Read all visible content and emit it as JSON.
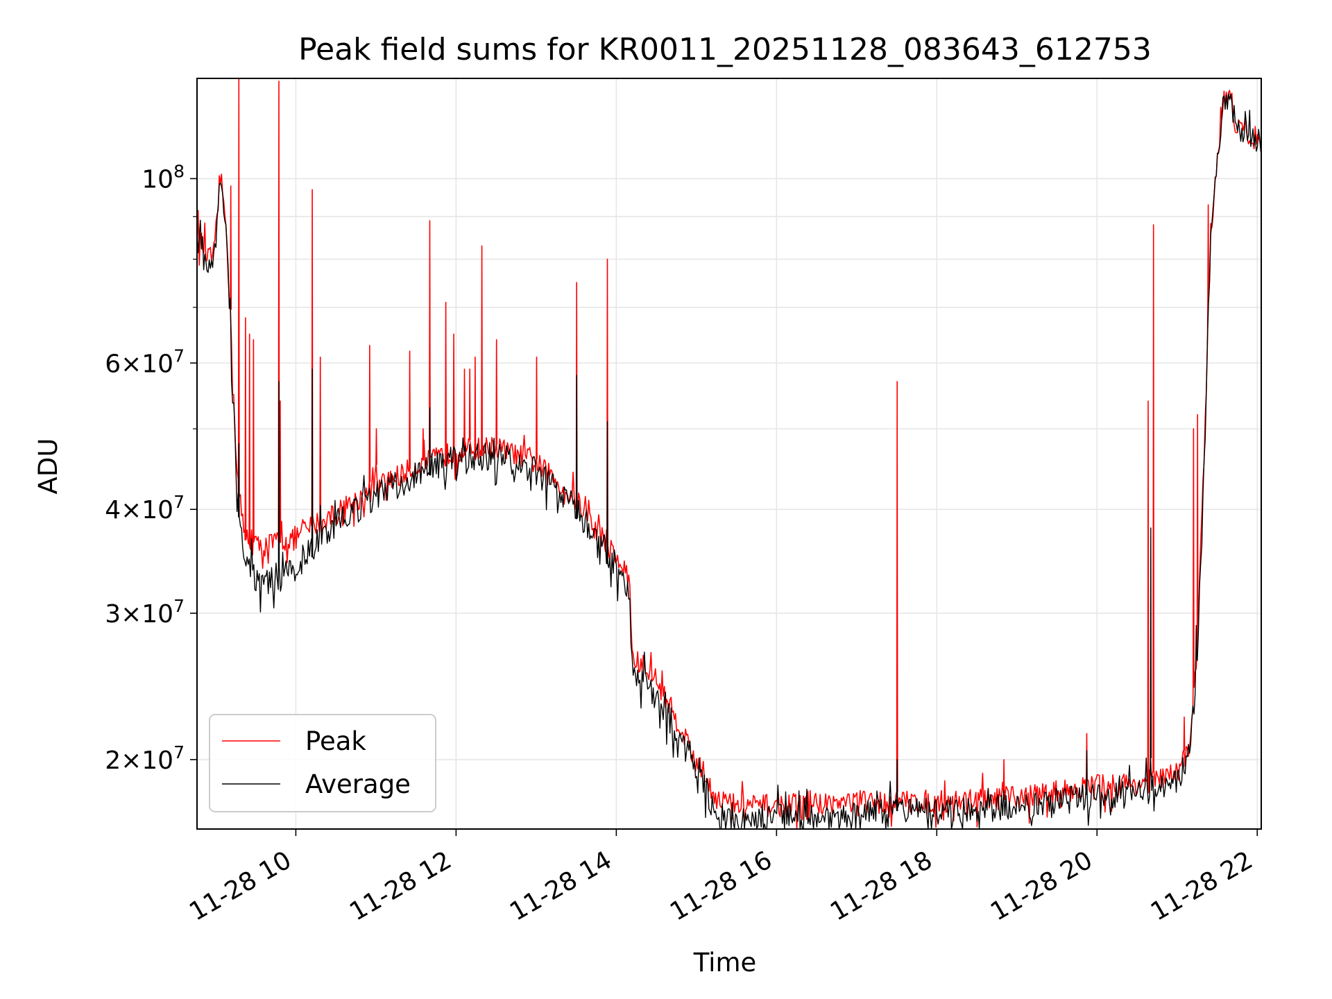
{
  "chart_data": {
    "type": "line",
    "title": "Peak field sums for KR0011_20251128_083643_612753",
    "xlabel": "Time",
    "ylabel": "ADU",
    "y_scale": "log",
    "grid": true,
    "legend_position": "lower-left",
    "xlim": [
      "2025-11-28 08:46",
      "2025-11-28 22:03"
    ],
    "ylim": [
      16500000,
      132000000
    ],
    "x_ticks": [
      {
        "value": "2025-11-28 10:00",
        "label": "11-28 10"
      },
      {
        "value": "2025-11-28 12:00",
        "label": "11-28 12"
      },
      {
        "value": "2025-11-28 14:00",
        "label": "11-28 14"
      },
      {
        "value": "2025-11-28 16:00",
        "label": "11-28 16"
      },
      {
        "value": "2025-11-28 18:00",
        "label": "11-28 18"
      },
      {
        "value": "2025-11-28 20:00",
        "label": "11-28 20"
      },
      {
        "value": "2025-11-28 22:00",
        "label": "11-28 22"
      }
    ],
    "y_ticks": [
      {
        "value": 20000000,
        "mant": "2",
        "exp": "7"
      },
      {
        "value": 30000000,
        "mant": "3",
        "exp": "7"
      },
      {
        "value": 40000000,
        "mant": "4",
        "exp": "7"
      },
      {
        "value": 60000000,
        "mant": "6",
        "exp": "7"
      },
      {
        "value": 100000000,
        "mant": "",
        "exp": "8"
      }
    ],
    "y_minor_ticks": [
      50000000,
      70000000,
      80000000,
      90000000
    ],
    "series": [
      {
        "name": "Peak",
        "color": "#ff0000",
        "points": [
          [
            "2025-11-28 08:46",
            86000000
          ],
          [
            "2025-11-28 08:55",
            80000000
          ],
          [
            "2025-11-28 09:00",
            82000000
          ],
          [
            "2025-11-28 09:03",
            102000000
          ],
          [
            "2025-11-28 09:08",
            88000000
          ],
          [
            "2025-11-28 09:12",
            62000000
          ],
          [
            "2025-11-28 09:16",
            44000000
          ],
          [
            "2025-11-28 09:21",
            37500000
          ],
          [
            "2025-11-28 09:30",
            36000000
          ],
          [
            "2025-11-28 09:45",
            36500000
          ],
          [
            "2025-11-28 10:00",
            37000000
          ],
          [
            "2025-11-28 10:15",
            38500000
          ],
          [
            "2025-11-28 10:30",
            39500000
          ],
          [
            "2025-11-28 11:00",
            42500000
          ],
          [
            "2025-11-28 11:30",
            45000000
          ],
          [
            "2025-11-28 12:00",
            47000000
          ],
          [
            "2025-11-28 12:30",
            47500000
          ],
          [
            "2025-11-28 13:00",
            45500000
          ],
          [
            "2025-11-28 13:30",
            41000000
          ],
          [
            "2025-11-28 14:00",
            35000000
          ],
          [
            "2025-11-28 14:10",
            33000000
          ],
          [
            "2025-11-28 14:12",
            26500000
          ],
          [
            "2025-11-28 14:30",
            25000000
          ],
          [
            "2025-11-28 15:00",
            20000000
          ],
          [
            "2025-11-28 15:15",
            18000000
          ],
          [
            "2025-11-28 15:30",
            17600000
          ],
          [
            "2025-11-28 16:00",
            17600000
          ],
          [
            "2025-11-28 17:00",
            17800000
          ],
          [
            "2025-11-28 18:00",
            17800000
          ],
          [
            "2025-11-28 19:00",
            18000000
          ],
          [
            "2025-11-28 20:00",
            18600000
          ],
          [
            "2025-11-28 20:30",
            18700000
          ],
          [
            "2025-11-28 21:00",
            19200000
          ],
          [
            "2025-11-28 21:10",
            21000000
          ],
          [
            "2025-11-28 21:15",
            27000000
          ],
          [
            "2025-11-28 21:20",
            45000000
          ],
          [
            "2025-11-28 21:25",
            85000000
          ],
          [
            "2025-11-28 21:30",
            106000000
          ],
          [
            "2025-11-28 21:35",
            125000000
          ],
          [
            "2025-11-28 21:40",
            126000000
          ],
          [
            "2025-11-28 21:45",
            114000000
          ],
          [
            "2025-11-28 21:50",
            116000000
          ],
          [
            "2025-11-28 21:55",
            112000000
          ],
          [
            "2025-11-28 22:03",
            112000000
          ]
        ]
      },
      {
        "name": "Average",
        "color": "#000000",
        "points": [
          [
            "2025-11-28 08:46",
            85000000
          ],
          [
            "2025-11-28 08:55",
            79000000
          ],
          [
            "2025-11-28 09:00",
            81000000
          ],
          [
            "2025-11-28 09:03",
            101000000
          ],
          [
            "2025-11-28 09:08",
            87000000
          ],
          [
            "2025-11-28 09:12",
            61000000
          ],
          [
            "2025-11-28 09:16",
            43000000
          ],
          [
            "2025-11-28 09:21",
            35500000
          ],
          [
            "2025-11-28 09:30",
            33000000
          ],
          [
            "2025-11-28 09:45",
            32800000
          ],
          [
            "2025-11-28 10:00",
            34000000
          ],
          [
            "2025-11-28 10:15",
            36500000
          ],
          [
            "2025-11-28 10:30",
            38500000
          ],
          [
            "2025-11-28 11:00",
            41500000
          ],
          [
            "2025-11-28 11:30",
            44000000
          ],
          [
            "2025-11-28 12:00",
            46000000
          ],
          [
            "2025-11-28 12:30",
            46500000
          ],
          [
            "2025-11-28 13:00",
            44500000
          ],
          [
            "2025-11-28 13:30",
            40000000
          ],
          [
            "2025-11-28 14:00",
            34300000
          ],
          [
            "2025-11-28 14:10",
            32000000
          ],
          [
            "2025-11-28 14:12",
            25500000
          ],
          [
            "2025-11-28 14:30",
            24000000
          ],
          [
            "2025-11-28 15:00",
            19500000
          ],
          [
            "2025-11-28 15:15",
            17200000
          ],
          [
            "2025-11-28 15:30",
            16800000
          ],
          [
            "2025-11-28 16:00",
            17000000
          ],
          [
            "2025-11-28 17:00",
            17200000
          ],
          [
            "2025-11-28 18:00",
            17300000
          ],
          [
            "2025-11-28 19:00",
            17600000
          ],
          [
            "2025-11-28 20:00",
            18000000
          ],
          [
            "2025-11-28 20:30",
            18200000
          ],
          [
            "2025-11-28 21:00",
            18800000
          ],
          [
            "2025-11-28 21:10",
            20500000
          ],
          [
            "2025-11-28 21:15",
            26500000
          ],
          [
            "2025-11-28 21:20",
            44000000
          ],
          [
            "2025-11-28 21:25",
            84000000
          ],
          [
            "2025-11-28 21:30",
            105000000
          ],
          [
            "2025-11-28 21:35",
            124000000
          ],
          [
            "2025-11-28 21:40",
            125000000
          ],
          [
            "2025-11-28 21:45",
            113000000
          ],
          [
            "2025-11-28 21:50",
            115000000
          ],
          [
            "2025-11-28 21:55",
            111000000
          ],
          [
            "2025-11-28 22:03",
            111000000
          ]
        ]
      }
    ],
    "peak_spikes": [
      [
        "2025-11-28 09:11",
        98000000
      ],
      [
        "2025-11-28 09:17",
        140000000
      ],
      [
        "2025-11-28 09:22",
        68000000
      ],
      [
        "2025-11-28 09:25",
        65000000
      ],
      [
        "2025-11-28 09:28",
        64000000
      ],
      [
        "2025-11-28 09:47",
        131000000
      ],
      [
        "2025-11-28 09:48",
        54000000
      ],
      [
        "2025-11-28 10:12",
        97000000
      ],
      [
        "2025-11-28 10:18",
        61000000
      ],
      [
        "2025-11-28 10:55",
        63000000
      ],
      [
        "2025-11-28 11:00",
        50000000
      ],
      [
        "2025-11-28 11:25",
        62000000
      ],
      [
        "2025-11-28 11:35",
        50000000
      ],
      [
        "2025-11-28 11:40",
        89000000
      ],
      [
        "2025-11-28 11:52",
        71000000
      ],
      [
        "2025-11-28 11:58",
        65000000
      ],
      [
        "2025-11-28 12:06",
        59000000
      ],
      [
        "2025-11-28 12:10",
        59000000
      ],
      [
        "2025-11-28 12:14",
        61000000
      ],
      [
        "2025-11-28 12:19",
        83000000
      ],
      [
        "2025-11-28 12:30",
        64000000
      ],
      [
        "2025-11-28 13:00",
        61000000
      ],
      [
        "2025-11-28 13:30",
        75000000
      ],
      [
        "2025-11-28 13:53",
        80000000
      ],
      [
        "2025-11-28 17:30",
        57000000
      ],
      [
        "2025-11-28 18:50",
        20000000
      ],
      [
        "2025-11-28 19:52",
        21500000
      ],
      [
        "2025-11-28 20:38",
        54000000
      ],
      [
        "2025-11-28 20:42",
        88000000
      ],
      [
        "2025-11-28 21:05",
        22500000
      ],
      [
        "2025-11-28 21:12",
        50000000
      ],
      [
        "2025-11-28 21:15",
        52000000
      ],
      [
        "2025-11-28 21:23",
        93000000
      ]
    ],
    "average_spikes": [
      [
        "2025-11-28 09:17",
        48000000
      ],
      [
        "2025-11-28 09:47",
        57000000
      ],
      [
        "2025-11-28 10:12",
        59000000
      ],
      [
        "2025-11-28 11:40",
        53000000
      ],
      [
        "2025-11-28 13:30",
        58000000
      ],
      [
        "2025-11-28 13:53",
        51000000
      ],
      [
        "2025-11-28 17:30",
        20000000
      ],
      [
        "2025-11-28 19:52",
        20500000
      ],
      [
        "2025-11-28 20:40",
        38000000
      ],
      [
        "2025-11-28 21:14",
        29000000
      ]
    ]
  }
}
